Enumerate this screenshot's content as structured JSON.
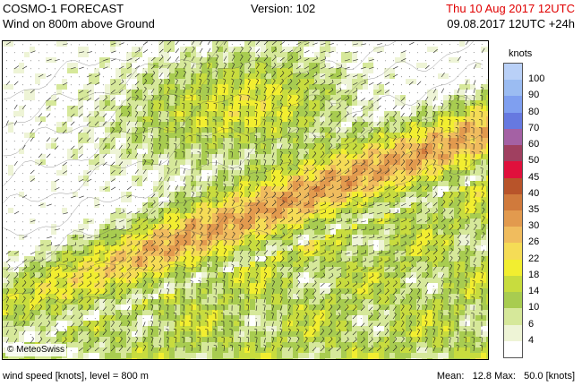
{
  "header": {
    "title": "COSMO-1 FORECAST",
    "subtitle": "Wind on 800m above Ground",
    "version": "Version: 102",
    "valid_time": "Thu 10 Aug 2017 12UTC",
    "run_info": "09.08.2017 12UTC +24h"
  },
  "map": {
    "copyright": "© MeteoSwiss"
  },
  "legend": {
    "unit": "knots",
    "levels": [
      {
        "label": "100",
        "color": "#b9d0f7"
      },
      {
        "label": "90",
        "color": "#9bbcf2"
      },
      {
        "label": "80",
        "color": "#7f9ff0"
      },
      {
        "label": "70",
        "color": "#6679e0"
      },
      {
        "label": "60",
        "color": "#a461a4"
      },
      {
        "label": "50",
        "color": "#a04060"
      },
      {
        "label": "45",
        "color": "#e0103c"
      },
      {
        "label": "40",
        "color": "#b8542a"
      },
      {
        "label": "35",
        "color": "#d07a3c"
      },
      {
        "label": "30",
        "color": "#e29a4e"
      },
      {
        "label": "26",
        "color": "#f0bc5e"
      },
      {
        "label": "22",
        "color": "#f5dc56"
      },
      {
        "label": "18",
        "color": "#f2ee30"
      },
      {
        "label": "14",
        "color": "#c8dc3e"
      },
      {
        "label": "10",
        "color": "#a8cc50"
      },
      {
        "label": "6",
        "color": "#d6e89a"
      },
      {
        "label": "4",
        "color": "#eef4d6"
      },
      {
        "label": "",
        "color": "#ffffff"
      }
    ]
  },
  "footer": {
    "variable": "wind speed [knots], level = 800 m",
    "mean_label": "Mean:",
    "mean_value": "12.8",
    "max_label": "Max:",
    "max_value": "50.0",
    "unit": "[knots]"
  }
}
